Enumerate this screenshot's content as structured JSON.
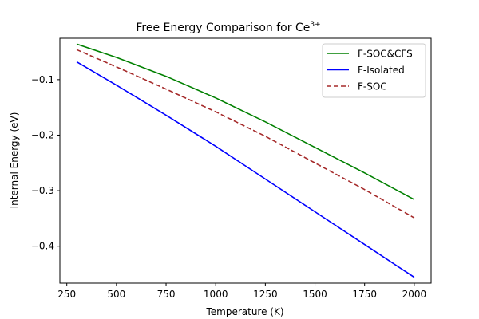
{
  "chart_data": {
    "type": "line",
    "title": "Free Energy Comparison for Ce",
    "title_superscript": "3+",
    "xlabel": "Temperature (K)",
    "ylabel": "Internal Energy (eV)",
    "xlim": [
      215,
      2085
    ],
    "ylim": [
      -0.4665,
      -0.0255
    ],
    "xticks": [
      250,
      500,
      750,
      1000,
      1250,
      1500,
      1750,
      2000
    ],
    "xtick_labels": [
      "250",
      "500",
      "750",
      "1000",
      "1250",
      "1500",
      "1750",
      "2000"
    ],
    "yticks": [
      -0.1,
      -0.2,
      -0.3,
      -0.4
    ],
    "ytick_labels": [
      "−0.1",
      "−0.2",
      "−0.3",
      "−0.4"
    ],
    "grid": false,
    "legend_position": "top-right",
    "series": [
      {
        "name": "F-SOC&CFS",
        "color": "#008000",
        "dash": "solid",
        "x": [
          300,
          500,
          750,
          1000,
          1250,
          1500,
          1750,
          2000
        ],
        "y": [
          -0.036,
          -0.06,
          -0.094,
          -0.133,
          -0.176,
          -0.222,
          -0.268,
          -0.316
        ]
      },
      {
        "name": "F-Isolated",
        "color": "#0000ff",
        "dash": "solid",
        "x": [
          300,
          500,
          750,
          1000,
          1250,
          1500,
          1750,
          2000
        ],
        "y": [
          -0.068,
          -0.11,
          -0.164,
          -0.22,
          -0.279,
          -0.338,
          -0.397,
          -0.456
        ]
      },
      {
        "name": "F-SOC",
        "color": "#a52a2a",
        "dash": "dashed",
        "x": [
          300,
          500,
          750,
          1000,
          1250,
          1500,
          1750,
          2000
        ],
        "y": [
          -0.046,
          -0.077,
          -0.117,
          -0.158,
          -0.202,
          -0.25,
          -0.298,
          -0.349
        ]
      }
    ]
  }
}
